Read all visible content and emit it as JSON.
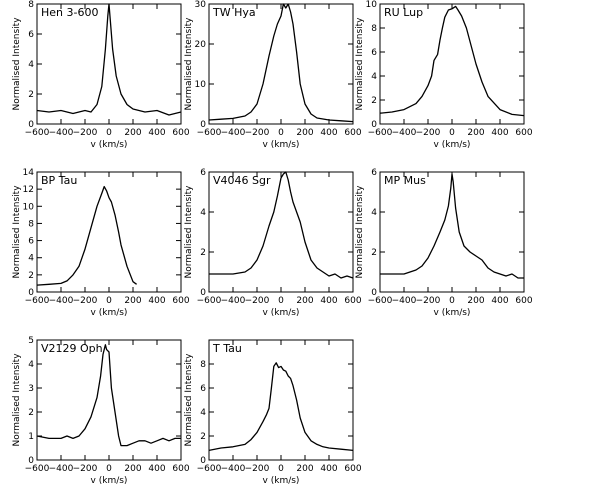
{
  "chart_data": [
    {
      "type": "line",
      "title": "Hen 3-600",
      "xlabel": "v (km/s)",
      "ylabel": "Normalised Intensity",
      "xlim": [
        -600,
        600
      ],
      "ylim": [
        0,
        8
      ],
      "xticks": [
        -600,
        -400,
        -200,
        0,
        200,
        400,
        600
      ],
      "yticks": [
        0,
        2,
        4,
        6,
        8
      ],
      "x": [
        -600,
        -500,
        -400,
        -300,
        -200,
        -150,
        -100,
        -60,
        -30,
        -10,
        0,
        10,
        30,
        60,
        100,
        150,
        200,
        300,
        400,
        500,
        600
      ],
      "y": [
        0.9,
        0.8,
        0.9,
        0.7,
        0.9,
        0.8,
        1.3,
        2.5,
        5.0,
        7.2,
        8.0,
        7.0,
        5.0,
        3.2,
        2.0,
        1.3,
        1.0,
        0.8,
        0.9,
        0.6,
        0.8
      ]
    },
    {
      "type": "line",
      "title": "TW Hya",
      "xlabel": "v (km/s)",
      "ylabel": "Normalised Intensity",
      "xlim": [
        -600,
        600
      ],
      "ylim": [
        0,
        30
      ],
      "xticks": [
        -600,
        -400,
        -200,
        0,
        200,
        400,
        600
      ],
      "yticks": [
        0,
        10,
        20,
        30
      ],
      "x": [
        -600,
        -500,
        -400,
        -300,
        -250,
        -200,
        -150,
        -100,
        -60,
        -30,
        0,
        20,
        40,
        60,
        80,
        100,
        130,
        160,
        200,
        250,
        300,
        400,
        500,
        600
      ],
      "y": [
        1.0,
        1.2,
        1.4,
        2.0,
        3.0,
        5.0,
        10.0,
        17.0,
        22.0,
        25.0,
        27.0,
        30.0,
        29.0,
        30.0,
        28.0,
        25.0,
        18.0,
        10.0,
        5.0,
        2.5,
        1.5,
        1.0,
        0.8,
        0.6
      ]
    },
    {
      "type": "line",
      "title": "RU Lup",
      "xlabel": "v (km/s)",
      "ylabel": "Normalised Intensity",
      "xlim": [
        -600,
        600
      ],
      "ylim": [
        0,
        10
      ],
      "xticks": [
        -600,
        -400,
        -200,
        0,
        200,
        400,
        600
      ],
      "yticks": [
        0,
        2,
        4,
        6,
        8,
        10
      ],
      "x": [
        -600,
        -500,
        -400,
        -300,
        -250,
        -200,
        -170,
        -150,
        -120,
        -100,
        -80,
        -60,
        -30,
        0,
        30,
        50,
        80,
        120,
        160,
        200,
        250,
        300,
        400,
        500,
        600
      ],
      "y": [
        0.9,
        1.0,
        1.2,
        1.7,
        2.3,
        3.2,
        4.0,
        5.3,
        5.8,
        7.0,
        8.0,
        8.9,
        9.5,
        9.6,
        9.8,
        9.5,
        9.0,
        8.0,
        6.5,
        5.0,
        3.5,
        2.3,
        1.2,
        0.8,
        0.7
      ]
    },
    {
      "type": "line",
      "title": "BP Tau",
      "xlabel": "v (km/s)",
      "ylabel": "Normalised Intensity",
      "xlim": [
        -600,
        600
      ],
      "ylim": [
        0,
        14
      ],
      "xticks": [
        -600,
        -400,
        -200,
        0,
        200,
        400,
        600
      ],
      "yticks": [
        0,
        2,
        4,
        6,
        8,
        10,
        12,
        14
      ],
      "x": [
        -600,
        -500,
        -400,
        -350,
        -300,
        -250,
        -200,
        -150,
        -100,
        -60,
        -40,
        -20,
        0,
        20,
        50,
        80,
        100,
        150,
        200,
        230
      ],
      "y": [
        0.8,
        0.9,
        1.0,
        1.3,
        2.0,
        3.0,
        5.0,
        7.5,
        10.0,
        11.5,
        12.3,
        11.8,
        11.0,
        10.5,
        9.0,
        7.0,
        5.5,
        3.0,
        1.2,
        0.9
      ]
    },
    {
      "type": "line",
      "title": "V4046 Sgr",
      "xlabel": "v (km/s)",
      "ylabel": "Normalised Intensity",
      "xlim": [
        -600,
        600
      ],
      "ylim": [
        0,
        6
      ],
      "xticks": [
        -600,
        -400,
        -200,
        0,
        200,
        400,
        600
      ],
      "yticks": [
        0,
        2,
        4,
        6
      ],
      "x": [
        -600,
        -500,
        -400,
        -300,
        -250,
        -200,
        -150,
        -100,
        -60,
        -30,
        0,
        20,
        40,
        60,
        80,
        100,
        130,
        160,
        200,
        250,
        300,
        350,
        400,
        450,
        500,
        550,
        600
      ],
      "y": [
        0.9,
        0.9,
        0.9,
        1.0,
        1.2,
        1.6,
        2.3,
        3.3,
        4.0,
        4.8,
        5.7,
        5.9,
        6.0,
        5.6,
        5.0,
        4.5,
        4.0,
        3.5,
        2.5,
        1.6,
        1.2,
        1.0,
        0.8,
        0.9,
        0.7,
        0.8,
        0.7
      ]
    },
    {
      "type": "line",
      "title": "MP Mus",
      "xlabel": "v (km/s)",
      "ylabel": "Normalised Intensity",
      "xlim": [
        -600,
        600
      ],
      "ylim": [
        0,
        6
      ],
      "xticks": [
        -600,
        -400,
        -200,
        0,
        200,
        400,
        600
      ],
      "yticks": [
        0,
        2,
        4,
        6
      ],
      "x": [
        -600,
        -500,
        -400,
        -300,
        -250,
        -200,
        -150,
        -100,
        -60,
        -30,
        -10,
        0,
        10,
        30,
        60,
        100,
        150,
        200,
        250,
        300,
        350,
        400,
        450,
        500,
        550,
        600
      ],
      "y": [
        0.9,
        0.9,
        0.9,
        1.1,
        1.3,
        1.7,
        2.3,
        3.0,
        3.6,
        4.3,
        5.2,
        5.9,
        5.5,
        4.2,
        3.0,
        2.3,
        2.0,
        1.8,
        1.6,
        1.2,
        1.0,
        0.9,
        0.8,
        0.9,
        0.7,
        0.7
      ]
    },
    {
      "type": "line",
      "title": "V2129 Oph",
      "xlabel": "v (km/s)",
      "ylabel": "Normalised Intensity",
      "xlim": [
        -600,
        600
      ],
      "ylim": [
        0,
        5
      ],
      "xticks": [
        -600,
        -400,
        -200,
        0,
        200,
        400,
        600
      ],
      "yticks": [
        0,
        1,
        2,
        3,
        4,
        5
      ],
      "x": [
        -600,
        -500,
        -400,
        -350,
        -300,
        -250,
        -200,
        -150,
        -100,
        -70,
        -50,
        -30,
        -20,
        0,
        20,
        50,
        80,
        100,
        150,
        200,
        250,
        300,
        350,
        400,
        450,
        500,
        550,
        600
      ],
      "y": [
        1.0,
        0.9,
        0.9,
        1.0,
        0.9,
        1.0,
        1.3,
        1.8,
        2.6,
        3.5,
        4.4,
        4.8,
        4.6,
        4.5,
        3.0,
        2.0,
        1.0,
        0.6,
        0.6,
        0.7,
        0.8,
        0.8,
        0.7,
        0.8,
        0.9,
        0.8,
        0.9,
        0.9
      ]
    },
    {
      "type": "line",
      "title": "T Tau",
      "xlabel": "v (km/s)",
      "ylabel": "Normalised Intensity",
      "xlim": [
        -600,
        600
      ],
      "ylim": [
        0,
        10
      ],
      "xticks": [
        -600,
        -400,
        -200,
        0,
        200,
        400,
        600
      ],
      "yticks": [
        0,
        2,
        4,
        6,
        8
      ],
      "x": [
        -600,
        -500,
        -400,
        -300,
        -250,
        -200,
        -150,
        -120,
        -100,
        -80,
        -60,
        -40,
        -20,
        0,
        20,
        40,
        60,
        80,
        100,
        130,
        160,
        200,
        250,
        300,
        350,
        400,
        500,
        600
      ],
      "y": [
        0.8,
        1.0,
        1.1,
        1.3,
        1.7,
        2.3,
        3.2,
        3.8,
        4.3,
        6.0,
        7.8,
        8.1,
        7.7,
        7.8,
        7.5,
        7.4,
        7.0,
        6.8,
        6.2,
        5.0,
        3.5,
        2.3,
        1.6,
        1.3,
        1.1,
        1.0,
        0.9,
        0.8
      ]
    }
  ]
}
